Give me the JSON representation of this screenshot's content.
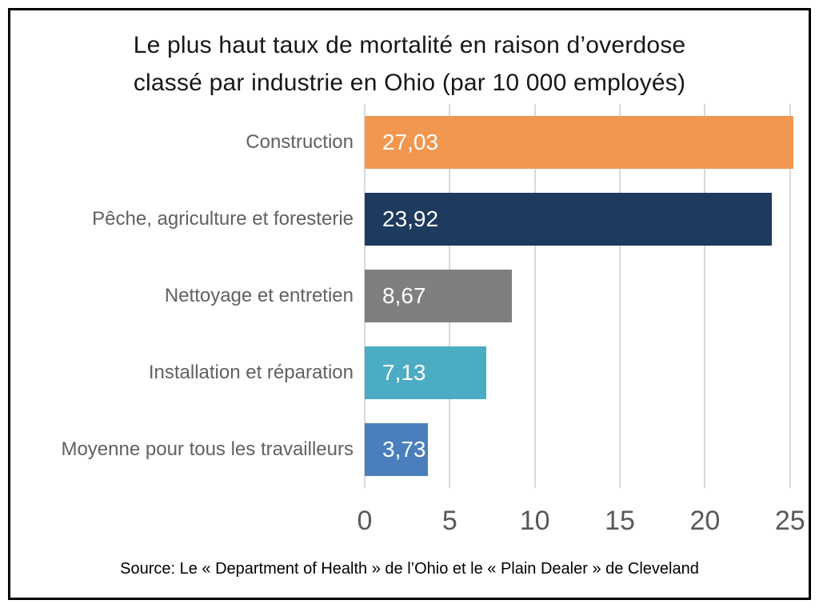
{
  "title": {
    "line1": "Le plus haut taux de mortalité en raison d’overdose",
    "line2": "classé par industrie en Ohio (par 10 000 employés)"
  },
  "source": "Source: Le « Department of Health » de l’Ohio et le « Plain Dealer » de Cleveland",
  "chart_data": {
    "type": "bar",
    "orientation": "horizontal",
    "title": "Le plus haut taux de mortalité en raison d’overdose classé par industrie en Ohio (par 10 000 employés)",
    "categories": [
      "Construction",
      "Pêche, agriculture et foresterie",
      "Nettoyage et entretien",
      "Installation et réparation",
      "Moyenne pour tous les travailleurs"
    ],
    "values": [
      27.03,
      23.92,
      8.67,
      7.13,
      3.73
    ],
    "value_labels": [
      "27,03",
      "23,92",
      "8,67",
      "7,13",
      "3,73"
    ],
    "bar_colors": [
      "#f2974f",
      "#1e3a5f",
      "#7f7f7f",
      "#4bacc4",
      "#4a7ebc"
    ],
    "x_ticks": [
      0,
      5,
      10,
      15,
      20,
      25
    ],
    "xlim": [
      0,
      25.2
    ],
    "gridlines": true,
    "gridline_color": "#d9d9d9",
    "category_label_color": "#616161",
    "tick_label_color": "#595959",
    "value_label_color": "#ffffff",
    "legend": "none"
  }
}
